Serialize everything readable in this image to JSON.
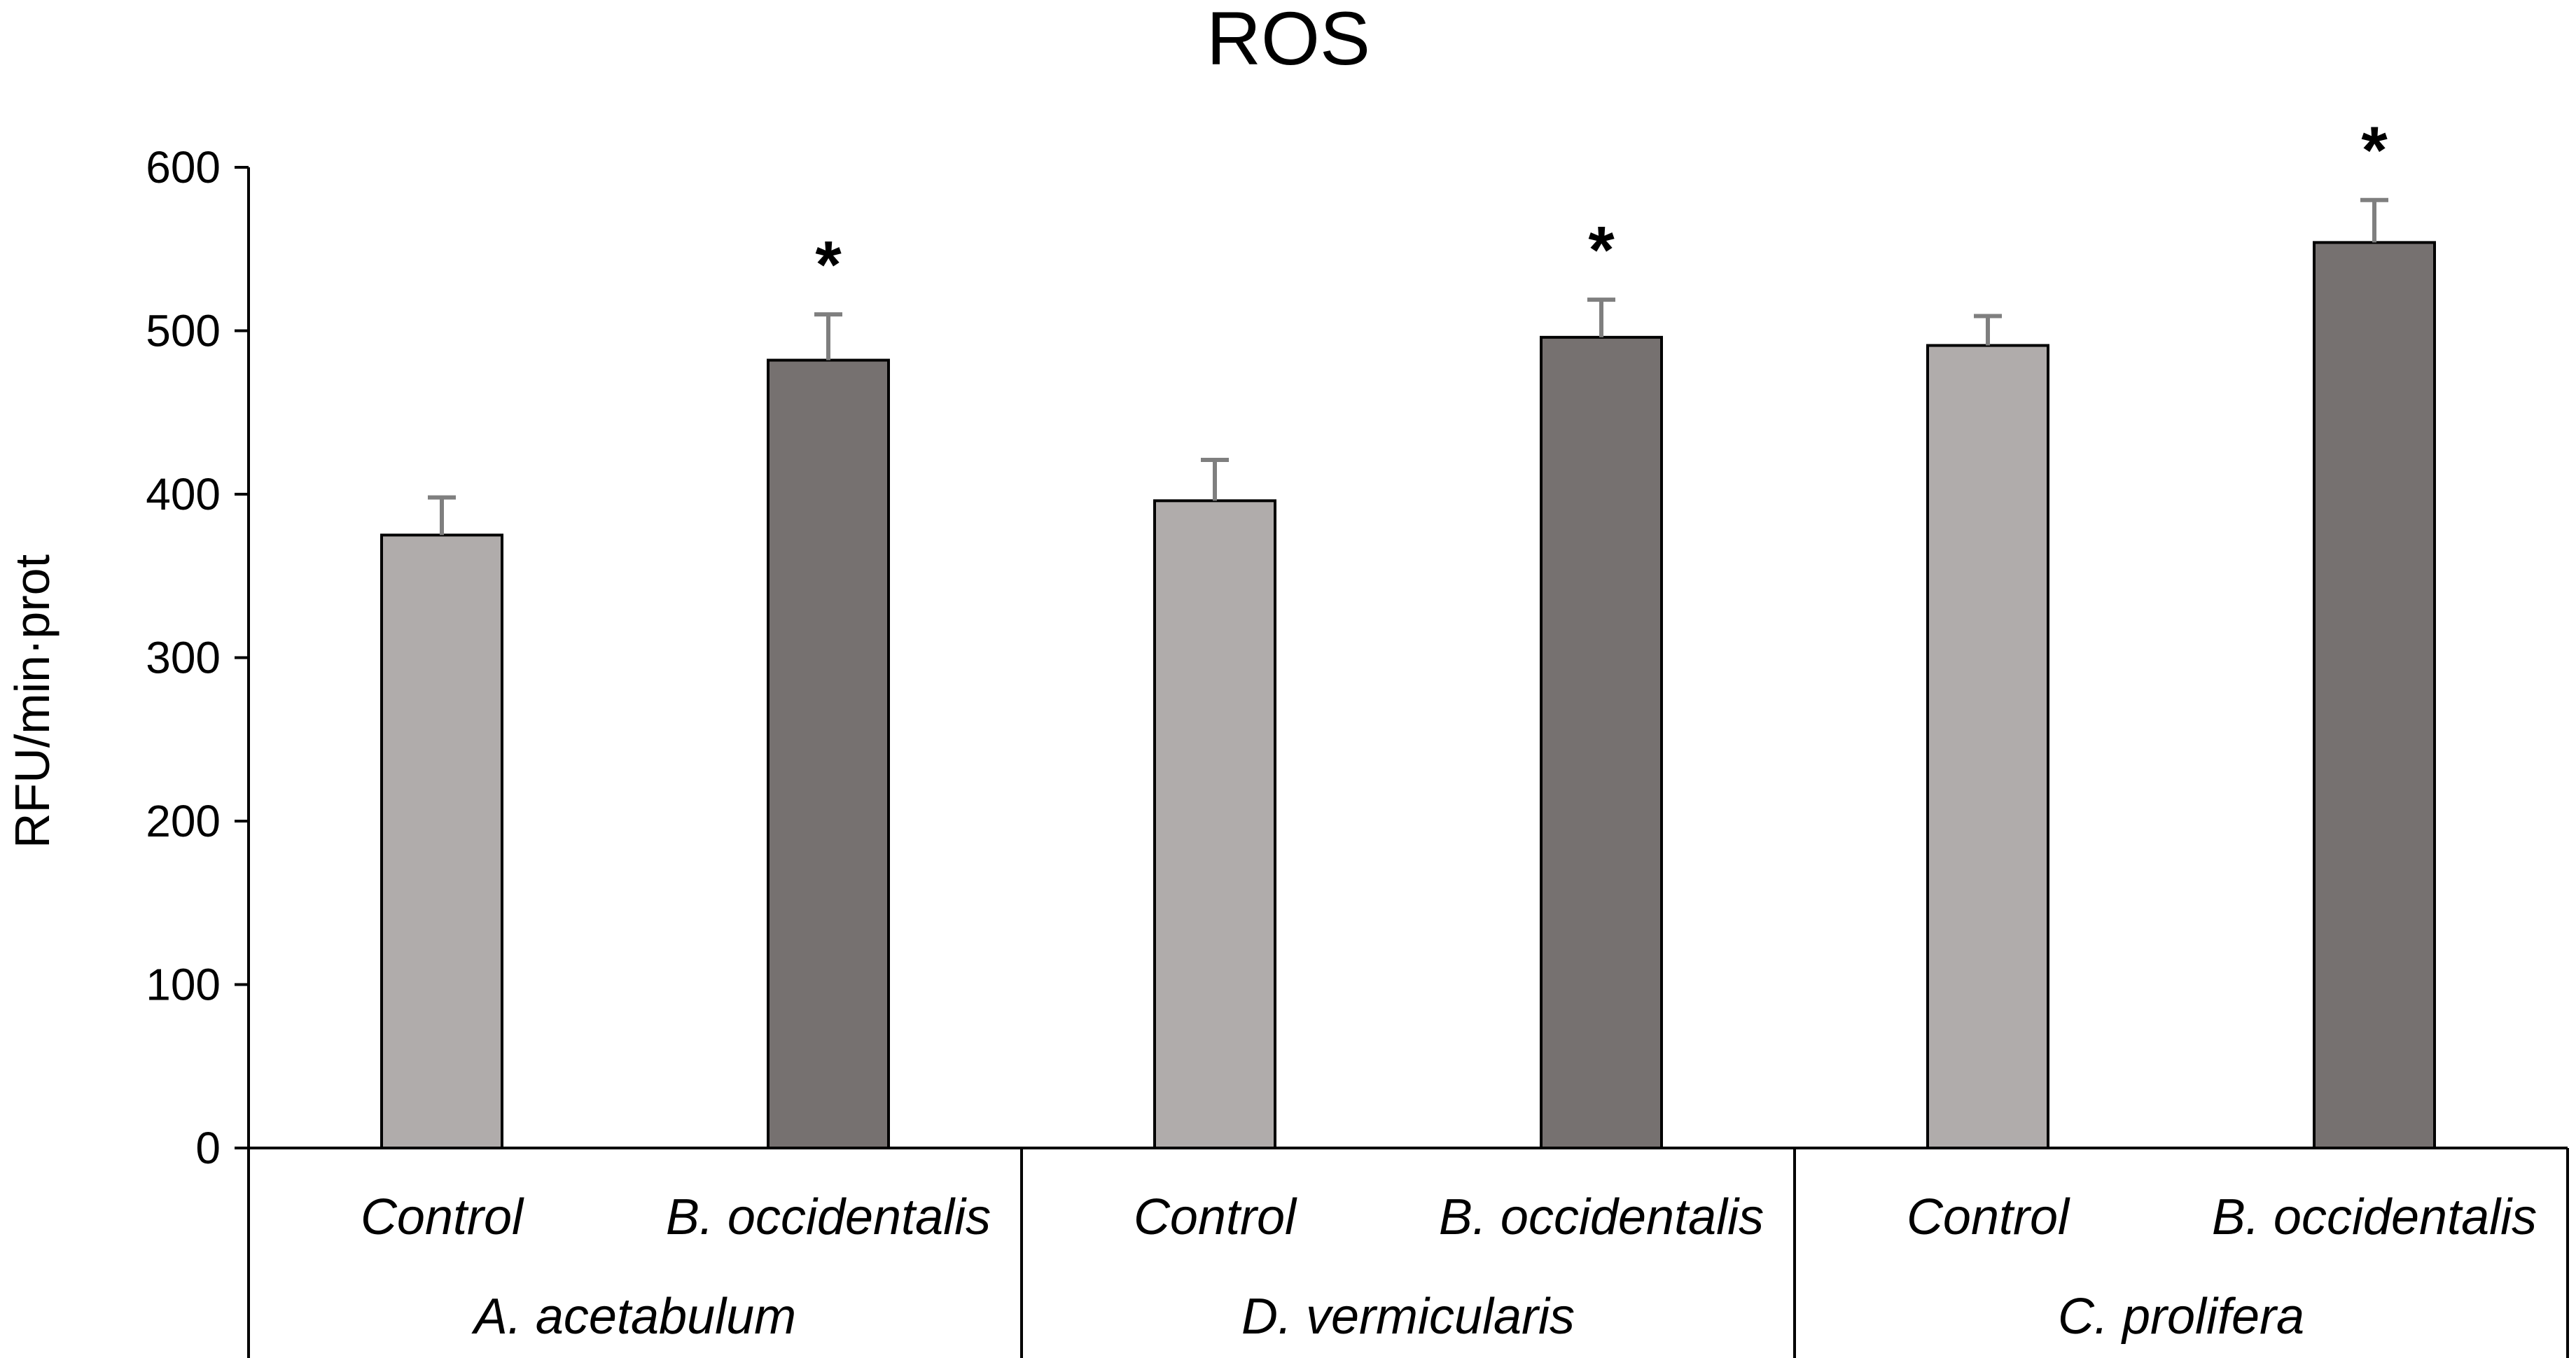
{
  "chart_data": {
    "type": "bar",
    "title": "ROS",
    "ylabel": "RFU/min·prot",
    "xlabel": "",
    "ylim": [
      0,
      600
    ],
    "yticks": [
      0,
      100,
      200,
      300,
      400,
      500,
      600
    ],
    "grid": false,
    "groups": [
      {
        "label": "A. acetabulum",
        "bars": [
          {
            "label": "Control",
            "value": 375,
            "error": 23,
            "significant": false
          },
          {
            "label": "B. occidentalis",
            "value": 482,
            "error": 28,
            "significant": true
          }
        ]
      },
      {
        "label": "D. vermicularis",
        "bars": [
          {
            "label": "Control",
            "value": 396,
            "error": 25,
            "significant": false
          },
          {
            "label": "B. occidentalis",
            "value": 496,
            "error": 23,
            "significant": true
          }
        ]
      },
      {
        "label": "C. prolifera",
        "bars": [
          {
            "label": "Control",
            "value": 491,
            "error": 18,
            "significant": false
          },
          {
            "label": "B. occidentalis",
            "value": 554,
            "error": 26,
            "significant": true
          }
        ]
      }
    ],
    "significance_marker": "*",
    "colors": {
      "control": "#b0acab",
      "treatment": "#767170",
      "outline": "#000000",
      "error_bar": "#7f7f7f"
    }
  }
}
